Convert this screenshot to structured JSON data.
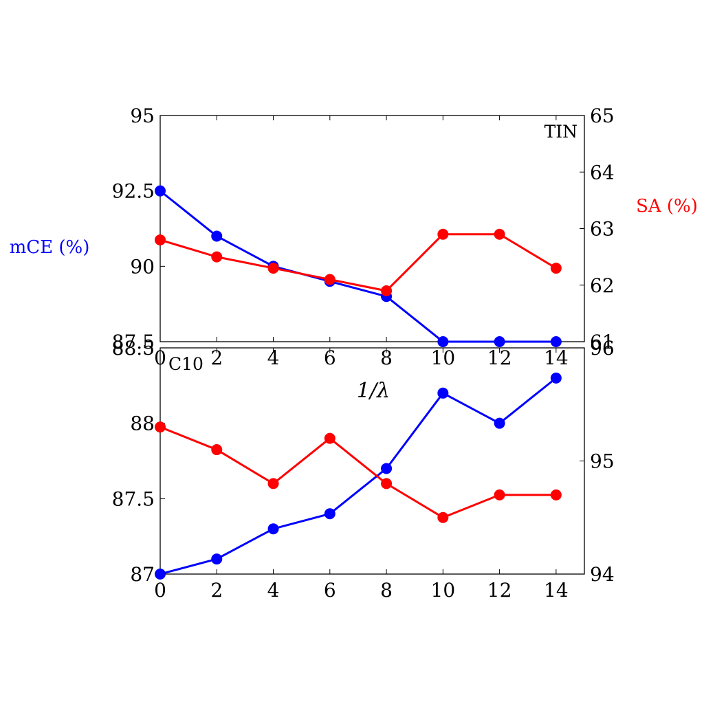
{
  "figure": {
    "xlabel": "1/λ",
    "left_axis_label": "mCE (%)",
    "right_axis_label": "SA (%)",
    "left_axis_color": "#0000ff",
    "right_axis_color": "#ff0000"
  },
  "chart_data": [
    {
      "type": "line",
      "panel_label": "TIN",
      "x": [
        0,
        2,
        4,
        6,
        8,
        10,
        12,
        14
      ],
      "xlim": [
        0,
        15
      ],
      "xticks": [
        0,
        2,
        4,
        6,
        8,
        10,
        12,
        14
      ],
      "left_ylim": [
        87.5,
        95
      ],
      "left_yticks": [
        "87.5",
        "90",
        "92.5",
        "95"
      ],
      "right_ylim": [
        61,
        65
      ],
      "right_yticks": [
        "61",
        "62",
        "63",
        "64",
        "65"
      ],
      "series": [
        {
          "axis": "left",
          "color": "#0000ff",
          "values": [
            92.5,
            91.0,
            90.0,
            89.5,
            89.0,
            87.5,
            87.5,
            87.5
          ]
        },
        {
          "axis": "right",
          "color": "#ff0000",
          "values": [
            62.8,
            62.5,
            62.3,
            62.1,
            61.9,
            62.9,
            62.9,
            62.3
          ]
        }
      ],
      "grid": false
    },
    {
      "type": "line",
      "panel_label": "C10",
      "x": [
        0,
        2,
        4,
        6,
        8,
        10,
        12,
        14
      ],
      "xlim": [
        0,
        15
      ],
      "xticks": [
        0,
        2,
        4,
        6,
        8,
        10,
        12,
        14
      ],
      "left_ylim": [
        87,
        88.5
      ],
      "left_yticks": [
        "87",
        "87.5",
        "88",
        "88.5"
      ],
      "right_ylim": [
        94,
        96
      ],
      "right_yticks": [
        "94",
        "95",
        "96"
      ],
      "series": [
        {
          "axis": "left",
          "color": "#0000ff",
          "values": [
            87.0,
            87.1,
            87.3,
            87.4,
            87.7,
            88.2,
            88.0,
            88.3
          ]
        },
        {
          "axis": "right",
          "color": "#ff0000",
          "values": [
            95.3,
            95.1,
            94.8,
            95.2,
            94.8,
            94.5,
            94.7,
            94.7
          ]
        }
      ],
      "grid": false
    }
  ]
}
